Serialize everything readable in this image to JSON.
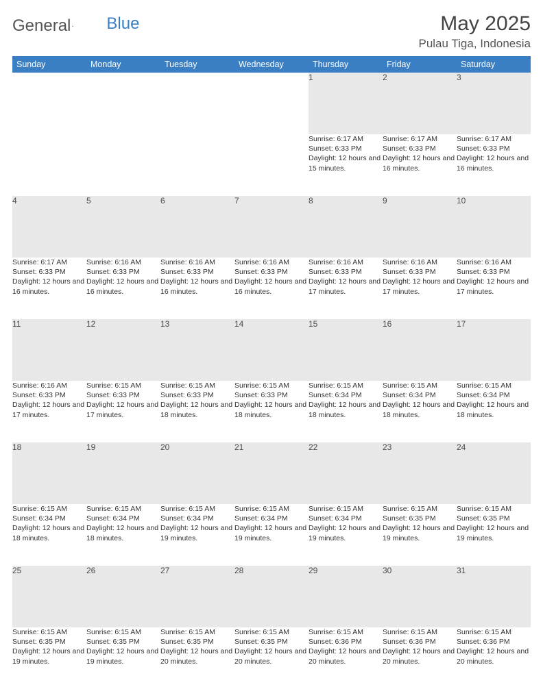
{
  "brand": {
    "name_part1": "General",
    "name_part2": "Blue"
  },
  "title": "May 2025",
  "location": "Pulau Tiga, Indonesia",
  "colors": {
    "header_bg": "#3a7fc4",
    "header_text": "#ffffff",
    "daynum_bg": "#e8e8e8",
    "daynum_text": "#4a4a4a",
    "body_text": "#333333",
    "page_bg": "#ffffff",
    "title_text": "#444444",
    "location_text": "#555555"
  },
  "typography": {
    "title_fontsize": 30,
    "location_fontsize": 17,
    "weekday_fontsize": 12.5,
    "daynum_fontsize": 12,
    "detail_fontsize": 10.5
  },
  "layout": {
    "columns": 7,
    "rows": 5,
    "first_weekday": "Sunday"
  },
  "weekdays": [
    "Sunday",
    "Monday",
    "Tuesday",
    "Wednesday",
    "Thursday",
    "Friday",
    "Saturday"
  ],
  "weeks": [
    [
      null,
      null,
      null,
      null,
      {
        "n": "1",
        "sr": "6:17 AM",
        "ss": "6:33 PM",
        "dl": "12 hours and 15 minutes."
      },
      {
        "n": "2",
        "sr": "6:17 AM",
        "ss": "6:33 PM",
        "dl": "12 hours and 16 minutes."
      },
      {
        "n": "3",
        "sr": "6:17 AM",
        "ss": "6:33 PM",
        "dl": "12 hours and 16 minutes."
      }
    ],
    [
      {
        "n": "4",
        "sr": "6:17 AM",
        "ss": "6:33 PM",
        "dl": "12 hours and 16 minutes."
      },
      {
        "n": "5",
        "sr": "6:16 AM",
        "ss": "6:33 PM",
        "dl": "12 hours and 16 minutes."
      },
      {
        "n": "6",
        "sr": "6:16 AM",
        "ss": "6:33 PM",
        "dl": "12 hours and 16 minutes."
      },
      {
        "n": "7",
        "sr": "6:16 AM",
        "ss": "6:33 PM",
        "dl": "12 hours and 16 minutes."
      },
      {
        "n": "8",
        "sr": "6:16 AM",
        "ss": "6:33 PM",
        "dl": "12 hours and 17 minutes."
      },
      {
        "n": "9",
        "sr": "6:16 AM",
        "ss": "6:33 PM",
        "dl": "12 hours and 17 minutes."
      },
      {
        "n": "10",
        "sr": "6:16 AM",
        "ss": "6:33 PM",
        "dl": "12 hours and 17 minutes."
      }
    ],
    [
      {
        "n": "11",
        "sr": "6:16 AM",
        "ss": "6:33 PM",
        "dl": "12 hours and 17 minutes."
      },
      {
        "n": "12",
        "sr": "6:15 AM",
        "ss": "6:33 PM",
        "dl": "12 hours and 17 minutes."
      },
      {
        "n": "13",
        "sr": "6:15 AM",
        "ss": "6:33 PM",
        "dl": "12 hours and 18 minutes."
      },
      {
        "n": "14",
        "sr": "6:15 AM",
        "ss": "6:33 PM",
        "dl": "12 hours and 18 minutes."
      },
      {
        "n": "15",
        "sr": "6:15 AM",
        "ss": "6:34 PM",
        "dl": "12 hours and 18 minutes."
      },
      {
        "n": "16",
        "sr": "6:15 AM",
        "ss": "6:34 PM",
        "dl": "12 hours and 18 minutes."
      },
      {
        "n": "17",
        "sr": "6:15 AM",
        "ss": "6:34 PM",
        "dl": "12 hours and 18 minutes."
      }
    ],
    [
      {
        "n": "18",
        "sr": "6:15 AM",
        "ss": "6:34 PM",
        "dl": "12 hours and 18 minutes."
      },
      {
        "n": "19",
        "sr": "6:15 AM",
        "ss": "6:34 PM",
        "dl": "12 hours and 18 minutes."
      },
      {
        "n": "20",
        "sr": "6:15 AM",
        "ss": "6:34 PM",
        "dl": "12 hours and 19 minutes."
      },
      {
        "n": "21",
        "sr": "6:15 AM",
        "ss": "6:34 PM",
        "dl": "12 hours and 19 minutes."
      },
      {
        "n": "22",
        "sr": "6:15 AM",
        "ss": "6:34 PM",
        "dl": "12 hours and 19 minutes."
      },
      {
        "n": "23",
        "sr": "6:15 AM",
        "ss": "6:35 PM",
        "dl": "12 hours and 19 minutes."
      },
      {
        "n": "24",
        "sr": "6:15 AM",
        "ss": "6:35 PM",
        "dl": "12 hours and 19 minutes."
      }
    ],
    [
      {
        "n": "25",
        "sr": "6:15 AM",
        "ss": "6:35 PM",
        "dl": "12 hours and 19 minutes."
      },
      {
        "n": "26",
        "sr": "6:15 AM",
        "ss": "6:35 PM",
        "dl": "12 hours and 19 minutes."
      },
      {
        "n": "27",
        "sr": "6:15 AM",
        "ss": "6:35 PM",
        "dl": "12 hours and 20 minutes."
      },
      {
        "n": "28",
        "sr": "6:15 AM",
        "ss": "6:35 PM",
        "dl": "12 hours and 20 minutes."
      },
      {
        "n": "29",
        "sr": "6:15 AM",
        "ss": "6:36 PM",
        "dl": "12 hours and 20 minutes."
      },
      {
        "n": "30",
        "sr": "6:15 AM",
        "ss": "6:36 PM",
        "dl": "12 hours and 20 minutes."
      },
      {
        "n": "31",
        "sr": "6:15 AM",
        "ss": "6:36 PM",
        "dl": "12 hours and 20 minutes."
      }
    ]
  ],
  "labels": {
    "sunrise": "Sunrise:",
    "sunset": "Sunset:",
    "daylight": "Daylight:"
  }
}
